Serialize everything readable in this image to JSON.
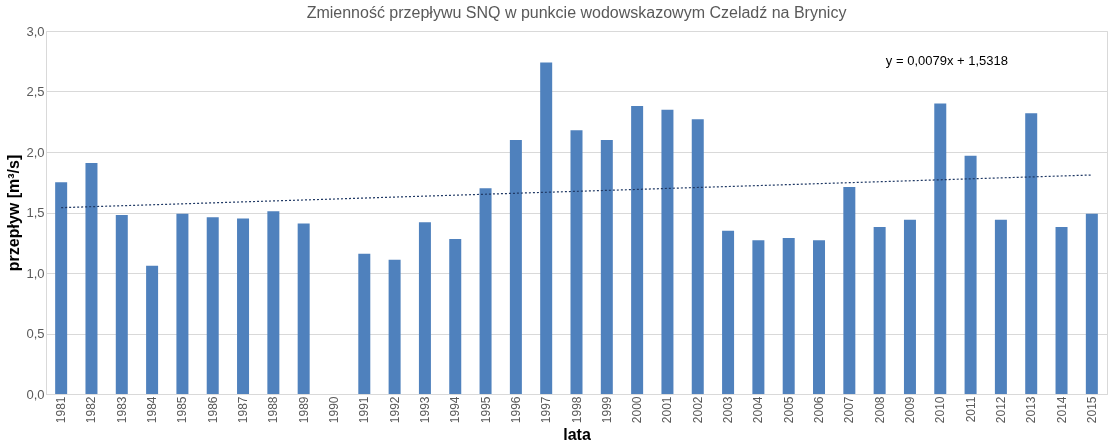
{
  "chart_data": {
    "type": "bar",
    "title": "Zmienność przepływu SNQ w punkcie wodowskazowym Czeladź na Brynicy",
    "xlabel": "lata",
    "ylabel": "przepływ [m³/s]",
    "categories": [
      "1981",
      "1982",
      "1983",
      "1984",
      "1985",
      "1986",
      "1987",
      "1988",
      "1989",
      "1990",
      "1991",
      "1992",
      "1993",
      "1994",
      "1995",
      "1996",
      "1997",
      "1998",
      "1999",
      "2000",
      "2001",
      "2002",
      "2003",
      "2004",
      "2005",
      "2006",
      "2007",
      "2008",
      "2009",
      "2010",
      "2011",
      "2012",
      "2013",
      "2014",
      "2015"
    ],
    "series": [
      {
        "color": "#4f81bd",
        "values": [
          1.75,
          1.91,
          1.48,
          1.06,
          1.49,
          1.46,
          1.45,
          1.51,
          1.41,
          null,
          1.16,
          1.11,
          1.42,
          1.28,
          1.7,
          2.1,
          2.74,
          2.18,
          2.1,
          2.38,
          2.35,
          2.27,
          1.35,
          1.27,
          1.29,
          1.27,
          1.71,
          1.38,
          1.44,
          2.4,
          1.97,
          1.44,
          2.32,
          1.38,
          1.49
        ]
      },
      {
        "type": "line",
        "color": "#1f3864",
        "line_style": "dotted",
        "values": [
          1.54,
          null,
          null,
          null,
          null,
          null,
          null,
          null,
          null,
          null,
          null,
          null,
          null,
          null,
          null,
          null,
          null,
          null,
          null,
          null,
          null,
          null,
          null,
          null,
          null,
          null,
          null,
          null,
          null,
          null,
          null,
          null,
          null,
          null,
          1.81
        ]
      }
    ],
    "annotations": [
      "y = 0,0079x + 1,5318"
    ],
    "ylim": [
      0,
      3
    ],
    "yticks": [
      {
        "value": 0,
        "label": "0,0"
      },
      {
        "value": 0.5,
        "label": "0,5"
      },
      {
        "value": 1,
        "label": "1,0"
      },
      {
        "value": 1.5,
        "label": "1,5"
      },
      {
        "value": 2,
        "label": "2,0"
      },
      {
        "value": 2.5,
        "label": "2,5"
      },
      {
        "value": 3,
        "label": "3,0"
      }
    ],
    "grid": "y"
  }
}
